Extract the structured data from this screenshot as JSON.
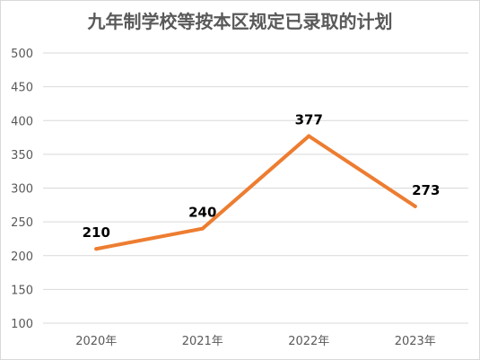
{
  "chart_data": {
    "type": "line",
    "title": "九年制学校等按本区规定已录取的计划",
    "xlabel": "",
    "ylabel": "",
    "categories": [
      "2020年",
      "2021年",
      "2022年",
      "2023年"
    ],
    "series": [
      {
        "values": [
          210,
          240,
          377,
          273
        ],
        "data_labels": [
          "210",
          "240",
          "377",
          "273"
        ]
      }
    ],
    "ylim": [
      100,
      500
    ],
    "yticks": [
      "100",
      "150",
      "200",
      "250",
      "300",
      "350",
      "400",
      "450",
      "500"
    ],
    "grid": true,
    "legend": "none",
    "line_color": "#ED7D31",
    "grid_color": "#D9D9D9"
  }
}
